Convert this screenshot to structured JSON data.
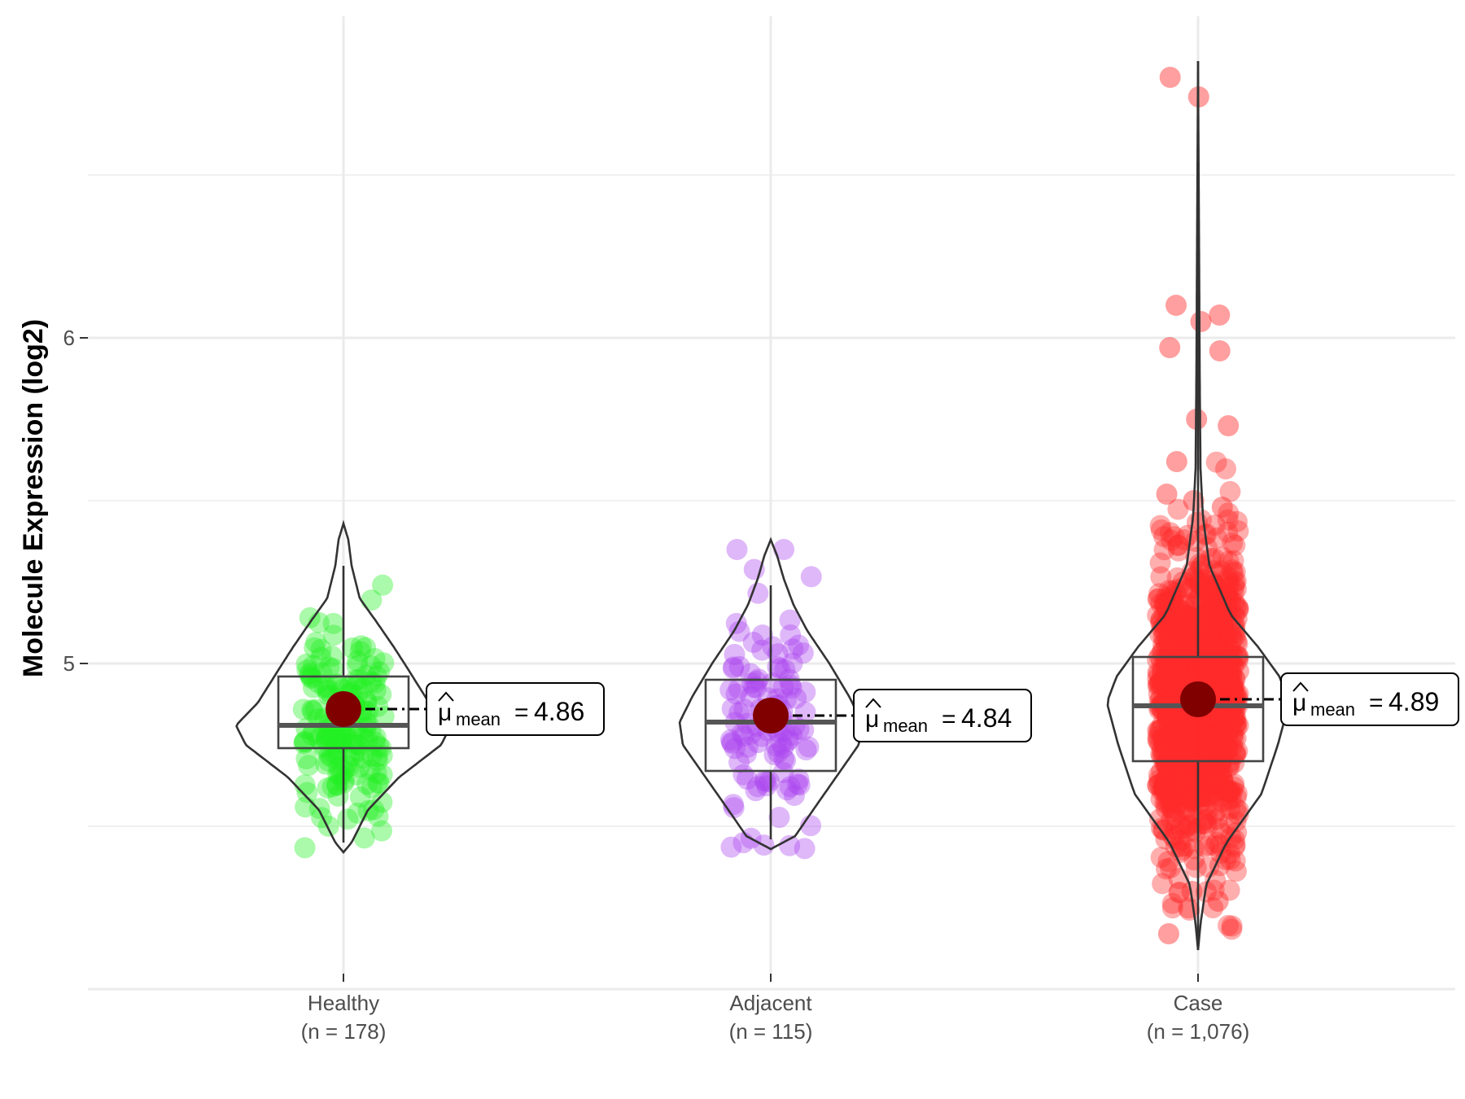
{
  "chart_data": {
    "type": "violin",
    "title": "",
    "xlabel": "",
    "ylabel": "Molecule Expression (log2)",
    "ylim": [
      4.0,
      6.98
    ],
    "y_ticks": [
      5,
      6
    ],
    "grid": true,
    "categories": [
      {
        "label": "Healthy",
        "n_label": "(n = 178)",
        "color": "#22ee22",
        "mean": 4.86,
        "mean_label": "4.86",
        "q1": 4.74,
        "median": 4.81,
        "q3": 4.96,
        "whisker_low": 4.45,
        "whisker_high": 5.3,
        "violin_min": 4.42,
        "violin_max": 5.43
      },
      {
        "label": "Adjacent",
        "n_label": "(n = 115)",
        "color": "#aa44ee",
        "mean": 4.84,
        "mean_label": "4.84",
        "q1": 4.67,
        "median": 4.82,
        "q3": 4.95,
        "whisker_low": 4.46,
        "whisker_high": 5.24,
        "violin_min": 4.43,
        "violin_max": 5.38
      },
      {
        "label": "Case",
        "n_label": "(n = 1,076)",
        "color": "#ff2a2a",
        "mean": 4.89,
        "mean_label": "4.89",
        "q1": 4.7,
        "median": 4.87,
        "q3": 5.02,
        "whisker_low": 4.12,
        "whisker_high": 6.85,
        "violin_min": 4.12,
        "violin_max": 6.85
      }
    ],
    "mean_symbol": "μ",
    "mean_subscript": "mean",
    "mean_color": "#800000"
  }
}
